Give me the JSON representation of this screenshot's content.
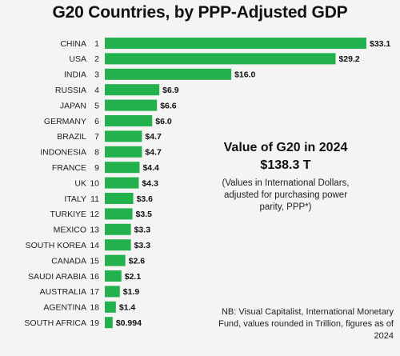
{
  "title": "G20 Countries, by PPP-Adjusted GDP",
  "summary": {
    "heading": "Value of G20 in 2024",
    "total": "$138.3 T",
    "note": "(Values in International Dollars, adjusted for purchasing power parity, PPP*)"
  },
  "source": "NB: Visual Capitalist, International Monetary Fund, values rounded in Trillion, figures as of 2024",
  "colors": {
    "bar": "#22b14c",
    "background": "#f4f4f4"
  },
  "chart_data": {
    "type": "bar",
    "orientation": "horizontal",
    "title": "G20 Countries, by PPP-Adjusted GDP",
    "categories": [
      "CHINA",
      "USA",
      "INDIA",
      "RUSSIA",
      "JAPAN",
      "GERMANY",
      "BRAZIL",
      "INDONESIA",
      "FRANCE",
      "UK",
      "ITALY",
      "TURKIYE",
      "MEXICO",
      "SOUTH KOREA",
      "CANADA",
      "SAUDI ARABIA",
      "AUSTRALIA",
      "AGENTINA",
      "SOUTH AFRICA"
    ],
    "ranks": [
      "1",
      "2",
      "3",
      "4",
      "5",
      "6",
      "7",
      "8",
      "9",
      "10",
      "11",
      "12",
      "13",
      "14",
      "15",
      "16",
      "17",
      "18",
      "19"
    ],
    "values": [
      33.1,
      29.2,
      16.0,
      6.9,
      6.6,
      6.0,
      4.7,
      4.7,
      4.4,
      4.3,
      3.6,
      3.5,
      3.3,
      3.3,
      2.6,
      2.1,
      1.9,
      1.4,
      0.994
    ],
    "value_labels": [
      "$33.1",
      "$29.2",
      "$16.0",
      "$6.9",
      "$6.6",
      "$6.0",
      "$4.7",
      "$4.7",
      "$4.4",
      "$4.3",
      "$3.6",
      "$3.5",
      "$3.3",
      "$3.3",
      "$2.6",
      "$2.1",
      "$1.9",
      "$1.4",
      "$0.994"
    ],
    "xlim": [
      0,
      33.1
    ],
    "grid": false,
    "legend": "none"
  }
}
